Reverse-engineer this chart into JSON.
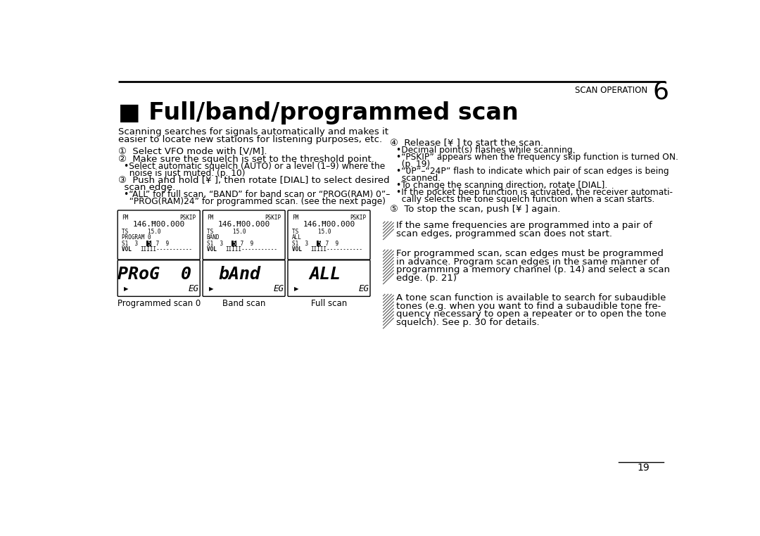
{
  "page_bg": "#ffffff",
  "header_text": "SCAN OPERATION",
  "header_num": "6",
  "title": "■ Full/band/programmed scan",
  "intro_line1": "Scanning searches for signals automatically and makes it",
  "intro_line2": "easier to locate new stations for listening purposes, etc.",
  "step1": "①  Select VFO mode with [V/M].",
  "step2": "②  Make sure the squelch is set to the threshold point.",
  "step2b1": "•Select automatic squelch (AUTO) or a level (1–9) where the",
  "step2b2": "  noise is just muted. (p. 10)",
  "step3a": "③  Push and hold [¥ ], then rotate [DIAL] to select desired",
  "step3b": "  scan edge.",
  "step3b1": "•“ALL” for full scan, “BAND” for band scan or “PROG(RAM) 0”–",
  "step3b2": "  “PROG(RAM)24” for programmed scan. (see the next page)",
  "step4": "④  Release [¥ ] to start the scan.",
  "step4b1": "•Decimal point(s) flashes while scanning.",
  "step4b2": "•“PSKIP” appears when the frequency skip function is turned ON.",
  "step4b2c": "  (p. 19)",
  "step4b3": "•“0P”–“24P” flash to indicate which pair of scan edges is being",
  "step4b3c": "  scanned.",
  "step4b4": "•To change the scanning direction, rotate [DIAL].",
  "step4b5": "•If the pocket beep function is activated, the receiver automati-",
  "step4b5c": "  cally selects the tone squelch function when a scan starts.",
  "step5": "⑤  To stop the scan, push [¥ ] again.",
  "note1a": "If the same frequencies are programmed into a pair of",
  "note1b": "scan edges, programmed scan does not start.",
  "note2a": "For programmed scan, scan edges must be programmed",
  "note2b": "in advance. Program scan edges in the same manner of",
  "note2c": "programming a memory channel (p. 14) and select a scan",
  "note2d": "edge. (p. 21)",
  "note3a": "A tone scan function is available to search for subaudible",
  "note3b": "tones (e.g. when you want to find a subaudible tone fre-",
  "note3c": "quency necessary to open a repeater or to open the tone",
  "note3d": "squelch). See p. 30 for details.",
  "page_num": "19",
  "lcd_labels": [
    "Programmed scan 0",
    "Band scan",
    "Full scan"
  ],
  "lcd_freq": "146.Ħ00.000",
  "lcd_ts": "TS      15.0",
  "lcd_scan_modes": [
    "PROGRAM 0",
    "BAND",
    "ALL"
  ],
  "lcd_display_texts": [
    "PRoG  0",
    "bAnd",
    "ALL"
  ],
  "lcd_fm": "FM",
  "lcd_pskip": "PSKIP"
}
